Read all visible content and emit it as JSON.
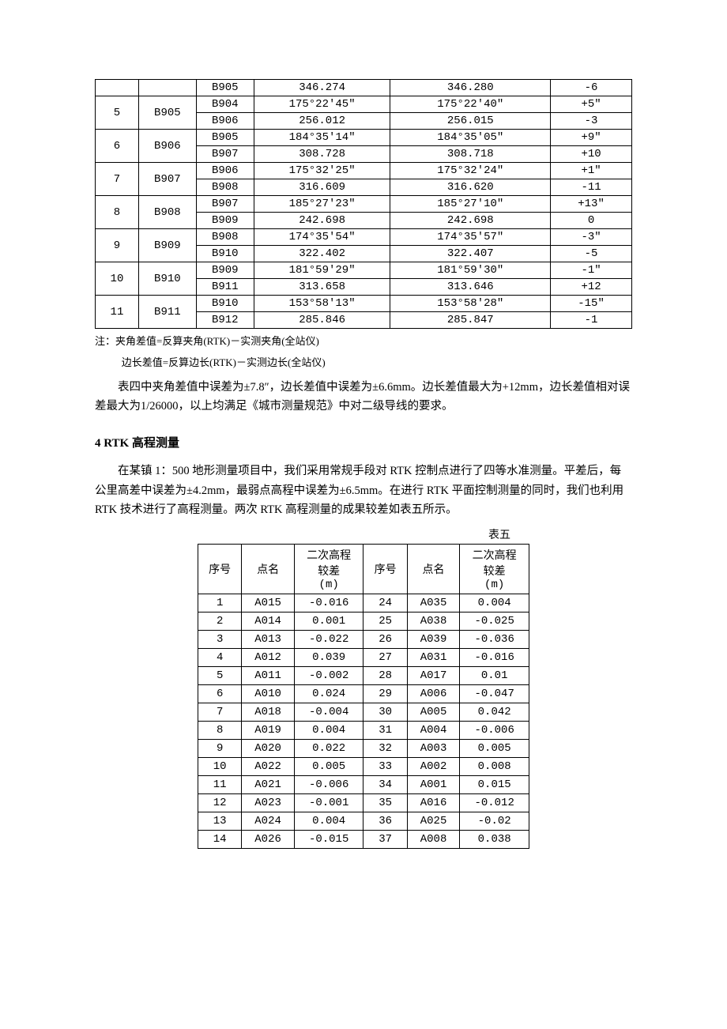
{
  "table4": {
    "rows": [
      {
        "idx": "",
        "station": "",
        "target": "B905",
        "val1": "346.274",
        "val2": "346.280",
        "diff": "-6"
      },
      {
        "idx": "5",
        "station": "B905",
        "target": "B904",
        "val1": "175°22′45″",
        "val2": "175°22′40″",
        "diff": "+5″"
      },
      {
        "idx": "",
        "station": "",
        "target": "B906",
        "val1": "256.012",
        "val2": "256.015",
        "diff": "-3"
      },
      {
        "idx": "6",
        "station": "B906",
        "target": "B905",
        "val1": "184°35′14″",
        "val2": "184°35′05″",
        "diff": "+9″"
      },
      {
        "idx": "",
        "station": "",
        "target": "B907",
        "val1": "308.728",
        "val2": "308.718",
        "diff": "+10"
      },
      {
        "idx": "7",
        "station": "B907",
        "target": "B906",
        "val1": "175°32′25″",
        "val2": "175°32′24″",
        "diff": "+1″"
      },
      {
        "idx": "",
        "station": "",
        "target": "B908",
        "val1": "316.609",
        "val2": "316.620",
        "diff": "-11"
      },
      {
        "idx": "8",
        "station": "B908",
        "target": "B907",
        "val1": "185°27′23″",
        "val2": "185°27′10″",
        "diff": "+13″"
      },
      {
        "idx": "",
        "station": "",
        "target": "B909",
        "val1": "242.698",
        "val2": "242.698",
        "diff": "0"
      },
      {
        "idx": "9",
        "station": "B909",
        "target": "B908",
        "val1": "174°35′54″",
        "val2": "174°35′57″",
        "diff": "-3″"
      },
      {
        "idx": "",
        "station": "",
        "target": "B910",
        "val1": "322.402",
        "val2": "322.407",
        "diff": "-5"
      },
      {
        "idx": "10",
        "station": "B910",
        "target": "B909",
        "val1": "181°59′29″",
        "val2": "181°59′30″",
        "diff": "-1″"
      },
      {
        "idx": "",
        "station": "",
        "target": "B911",
        "val1": "313.658",
        "val2": "313.646",
        "diff": "+12"
      },
      {
        "idx": "11",
        "station": "B911",
        "target": "B910",
        "val1": "153°58′13″",
        "val2": "153°58′28″",
        "diff": "-15″"
      },
      {
        "idx": "",
        "station": "",
        "target": "B912",
        "val1": "285.846",
        "val2": "285.847",
        "diff": "-1"
      }
    ]
  },
  "notes": {
    "n1": "注：夹角差值=反算夹角(RTK)－实测夹角(全站仪)",
    "n2": "边长差值=反算边长(RTK)－实测边长(全站仪)"
  },
  "para1": "表四中夹角差值中误差为±7.8″，边长差值中误差为±6.6mm。边长差值最大为+12mm，边长差值相对误差最大为1/26000，以上均满足《城市测量规范》中对二级导线的要求。",
  "heading4": "4  RTK 高程测量",
  "para2": "在某镇 1：500 地形测量项目中，我们采用常规手段对 RTK 控制点进行了四等水准测量。平差后，每公里高差中误差为±4.2mm，最弱点高程中误差为±6.5mm。在进行 RTK 平面控制测量的同时，我们也利用 RTK 技术进行了高程测量。两次 RTK 高程测量的成果较差如表五所示。",
  "table5": {
    "label": "表五",
    "header": {
      "c1": "序号",
      "c2": "点名",
      "c3l1": "二次高程",
      "c3l2": "较差",
      "c3l3": "(m)",
      "c4": "序号",
      "c5": "点名",
      "c6l1": "二次高程",
      "c6l2": "较差",
      "c6l3": "(m)"
    },
    "rows": [
      {
        "a": "1",
        "b": "A015",
        "c": "-0.016",
        "d": "24",
        "e": "A035",
        "f": "0.004"
      },
      {
        "a": "2",
        "b": "A014",
        "c": "0.001",
        "d": "25",
        "e": "A038",
        "f": "-0.025"
      },
      {
        "a": "3",
        "b": "A013",
        "c": "-0.022",
        "d": "26",
        "e": "A039",
        "f": "-0.036"
      },
      {
        "a": "4",
        "b": "A012",
        "c": "0.039",
        "d": "27",
        "e": "A031",
        "f": "-0.016"
      },
      {
        "a": "5",
        "b": "A011",
        "c": "-0.002",
        "d": "28",
        "e": "A017",
        "f": "0.01"
      },
      {
        "a": "6",
        "b": "A010",
        "c": "0.024",
        "d": "29",
        "e": "A006",
        "f": "-0.047"
      },
      {
        "a": "7",
        "b": "A018",
        "c": "-0.004",
        "d": "30",
        "e": "A005",
        "f": "0.042"
      },
      {
        "a": "8",
        "b": "A019",
        "c": "0.004",
        "d": "31",
        "e": "A004",
        "f": "-0.006"
      },
      {
        "a": "9",
        "b": "A020",
        "c": "0.022",
        "d": "32",
        "e": "A003",
        "f": "0.005"
      },
      {
        "a": "10",
        "b": "A022",
        "c": "0.005",
        "d": "33",
        "e": "A002",
        "f": "0.008"
      },
      {
        "a": "11",
        "b": "A021",
        "c": "-0.006",
        "d": "34",
        "e": "A001",
        "f": "0.015"
      },
      {
        "a": "12",
        "b": "A023",
        "c": "-0.001",
        "d": "35",
        "e": "A016",
        "f": "-0.012"
      },
      {
        "a": "13",
        "b": "A024",
        "c": "0.004",
        "d": "36",
        "e": "A025",
        "f": "-0.02"
      },
      {
        "a": "14",
        "b": "A026",
        "c": "-0.015",
        "d": "37",
        "e": "A008",
        "f": "0.038"
      }
    ]
  }
}
